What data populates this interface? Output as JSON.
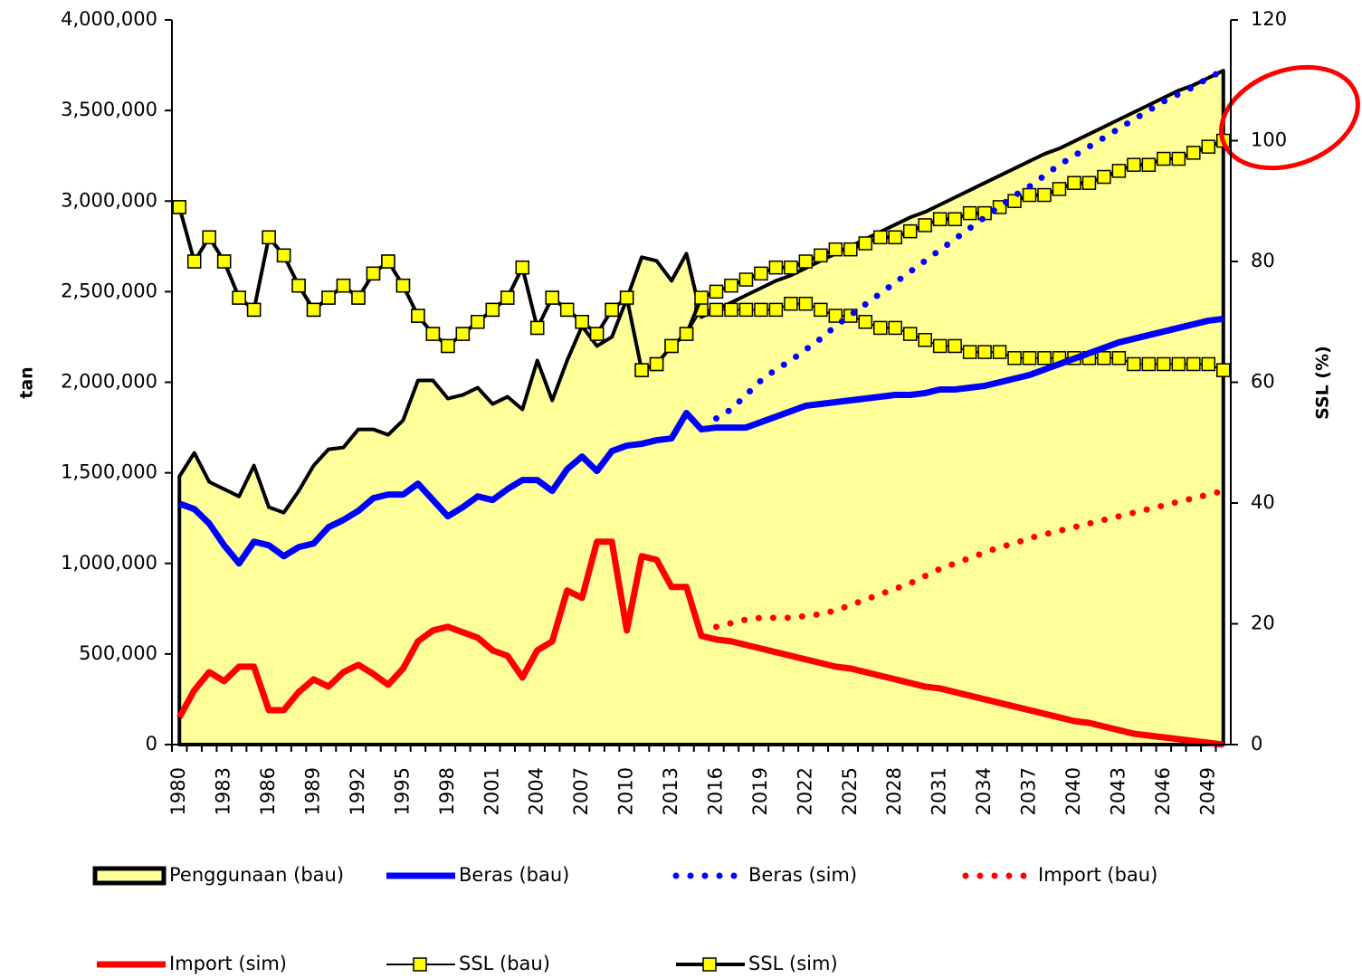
{
  "chart_data": {
    "type": "combo",
    "y_label": "tan",
    "y2_label": "SSL (%)",
    "categories": [
      "1980",
      null,
      null,
      "1983",
      null,
      null,
      "1986",
      null,
      null,
      "1989",
      null,
      null,
      "1992",
      null,
      null,
      "1995",
      null,
      null,
      "1998",
      null,
      null,
      "2001",
      null,
      null,
      "2004",
      null,
      null,
      "2007",
      null,
      null,
      "2010",
      null,
      null,
      "2013",
      null,
      null,
      "2016",
      null,
      null,
      "2019",
      null,
      null,
      "2022",
      null,
      null,
      "2025",
      null,
      null,
      "2028",
      null,
      null,
      "2031",
      null,
      null,
      "2034",
      null,
      null,
      "2037",
      null,
      null,
      "2040",
      null,
      null,
      "2043",
      null,
      null,
      "2046",
      null,
      null,
      "2049",
      null
    ],
    "ylim": [
      0,
      4000000
    ],
    "yticks": [
      0,
      {
        "value": 500000,
        "label": "500,000"
      },
      {
        "value": 1000000,
        "label": "1,000,000"
      },
      {
        "value": 1500000,
        "label": "1,500,000"
      },
      {
        "value": 2000000,
        "label": "2,000,000"
      },
      {
        "value": 2500000,
        "label": "2,500,000"
      },
      {
        "value": 3000000,
        "label": "3,000,000"
      },
      {
        "value": 3500000,
        "label": "3,500,000"
      },
      {
        "value": 4000000,
        "label": "4,000,000"
      }
    ],
    "y2lim": [
      0,
      120
    ],
    "y2ticks": [
      0,
      20,
      40,
      60,
      80,
      100,
      120
    ],
    "series": [
      {
        "name": "Penggunaan (bau)",
        "style": "area",
        "color": "#000000",
        "fill": "#ffff99",
        "values": [
          1480000,
          1610000,
          1450000,
          1410000,
          1370000,
          1540000,
          1310000,
          1280000,
          1400000,
          1540000,
          1630000,
          1640000,
          1740000,
          1740000,
          1710000,
          1790000,
          2010000,
          2010000,
          1910000,
          1930000,
          1970000,
          1880000,
          1920000,
          1850000,
          2120000,
          1900000,
          2120000,
          2310000,
          2200000,
          2250000,
          2460000,
          2690000,
          2670000,
          2560000,
          2710000,
          2360000,
          2400000,
          2440000,
          2480000,
          2520000,
          2560000,
          2590000,
          2630000,
          2670000,
          2710000,
          2750000,
          2790000,
          2830000,
          2870000,
          2910000,
          2940000,
          2980000,
          3020000,
          3060000,
          3100000,
          3140000,
          3180000,
          3220000,
          3260000,
          3290000,
          3330000,
          3370000,
          3410000,
          3450000,
          3490000,
          3530000,
          3570000,
          3610000,
          3640000,
          3680000,
          3720000
        ]
      },
      {
        "name": "Beras (bau)",
        "style": "solid",
        "color": "#0000ff",
        "values": [
          1330000,
          1300000,
          1220000,
          1100000,
          1000000,
          1120000,
          1100000,
          1040000,
          1090000,
          1110000,
          1200000,
          1240000,
          1290000,
          1360000,
          1380000,
          1380000,
          1440000,
          1350000,
          1260000,
          1310000,
          1370000,
          1350000,
          1410000,
          1460000,
          1460000,
          1400000,
          1520000,
          1590000,
          1510000,
          1620000,
          1650000,
          1660000,
          1680000,
          1690000,
          1830000,
          1740000,
          1750000,
          1750000,
          1750000,
          1780000,
          1810000,
          1840000,
          1870000,
          1880000,
          1890000,
          1900000,
          1910000,
          1920000,
          1930000,
          1930000,
          1940000,
          1960000,
          1960000,
          1970000,
          1980000,
          2000000,
          2020000,
          2040000,
          2070000,
          2100000,
          2130000,
          2160000,
          2190000,
          2220000,
          2240000,
          2260000,
          2280000,
          2300000,
          2320000,
          2340000,
          2350000
        ]
      },
      {
        "name": "Beras (sim)",
        "style": "dotted",
        "color": "#0000ff",
        "values": [
          null,
          null,
          null,
          null,
          null,
          null,
          null,
          null,
          null,
          null,
          null,
          null,
          null,
          null,
          null,
          null,
          null,
          null,
          null,
          null,
          null,
          null,
          null,
          null,
          null,
          null,
          null,
          null,
          null,
          null,
          null,
          null,
          null,
          null,
          null,
          null,
          1800000,
          1850000,
          1930000,
          2010000,
          2070000,
          2120000,
          2180000,
          2240000,
          2310000,
          2370000,
          2430000,
          2490000,
          2550000,
          2610000,
          2670000,
          2730000,
          2790000,
          2850000,
          2910000,
          2970000,
          3030000,
          3080000,
          3140000,
          3200000,
          3250000,
          3300000,
          3350000,
          3400000,
          3450000,
          3500000,
          3550000,
          3590000,
          3630000,
          3680000,
          3720000
        ]
      },
      {
        "name": "Import (bau)",
        "style": "dotted",
        "color": "#ff0000",
        "values": [
          null,
          null,
          null,
          null,
          null,
          null,
          null,
          null,
          null,
          null,
          null,
          null,
          null,
          null,
          null,
          null,
          null,
          null,
          null,
          null,
          null,
          null,
          null,
          null,
          null,
          null,
          null,
          null,
          null,
          null,
          null,
          null,
          null,
          null,
          null,
          null,
          650000,
          670000,
          690000,
          700000,
          700000,
          700000,
          710000,
          720000,
          740000,
          770000,
          800000,
          830000,
          860000,
          890000,
          930000,
          970000,
          1000000,
          1030000,
          1060000,
          1090000,
          1110000,
          1140000,
          1160000,
          1180000,
          1200000,
          1220000,
          1240000,
          1260000,
          1280000,
          1300000,
          1320000,
          1340000,
          1360000,
          1380000,
          1400000
        ]
      },
      {
        "name": "Import (sim)",
        "style": "solid",
        "color": "#ff0000",
        "values": [
          150000,
          300000,
          400000,
          350000,
          430000,
          430000,
          190000,
          190000,
          290000,
          360000,
          320000,
          400000,
          440000,
          390000,
          330000,
          420000,
          570000,
          630000,
          650000,
          620000,
          590000,
          520000,
          490000,
          370000,
          520000,
          570000,
          850000,
          810000,
          1120000,
          1120000,
          630000,
          1040000,
          1020000,
          870000,
          870000,
          600000,
          580000,
          570000,
          550000,
          530000,
          510000,
          490000,
          470000,
          450000,
          430000,
          420000,
          400000,
          380000,
          360000,
          340000,
          320000,
          310000,
          290000,
          270000,
          250000,
          230000,
          210000,
          190000,
          170000,
          150000,
          130000,
          120000,
          100000,
          80000,
          60000,
          50000,
          40000,
          30000,
          20000,
          10000,
          0
        ]
      },
      {
        "name": "SSL (bau)",
        "style": "thin-marker",
        "axis": "y2",
        "color": "#000000",
        "marker_color": "#ffff00",
        "values": [
          89,
          80,
          84,
          80,
          74,
          72,
          84,
          81,
          76,
          72,
          74,
          76,
          74,
          78,
          80,
          76,
          71,
          68,
          66,
          68,
          70,
          72,
          74,
          79,
          69,
          74,
          72,
          70,
          68,
          72,
          74,
          62,
          63,
          66,
          68,
          72,
          72,
          72,
          72,
          72,
          72,
          73,
          73,
          72,
          71,
          71,
          70,
          69,
          69,
          68,
          67,
          66,
          66,
          65,
          65,
          65,
          64,
          64,
          64,
          64,
          64,
          64,
          64,
          64,
          63,
          63,
          63,
          63,
          63,
          63,
          62
        ]
      },
      {
        "name": "SSL (sim)",
        "style": "thick-marker",
        "axis": "y2",
        "color": "#000000",
        "marker_color": "#ffff00",
        "values": [
          89,
          80,
          84,
          80,
          74,
          72,
          84,
          81,
          76,
          72,
          74,
          76,
          74,
          78,
          80,
          76,
          71,
          68,
          66,
          68,
          70,
          72,
          74,
          79,
          69,
          74,
          72,
          70,
          68,
          72,
          74,
          62,
          63,
          66,
          68,
          74,
          75,
          76,
          77,
          78,
          79,
          79,
          80,
          81,
          82,
          82,
          83,
          84,
          84,
          85,
          86,
          87,
          87,
          88,
          88,
          89,
          90,
          91,
          91,
          92,
          93,
          93,
          94,
          95,
          96,
          96,
          97,
          97,
          98,
          99,
          100
        ]
      }
    ]
  }
}
